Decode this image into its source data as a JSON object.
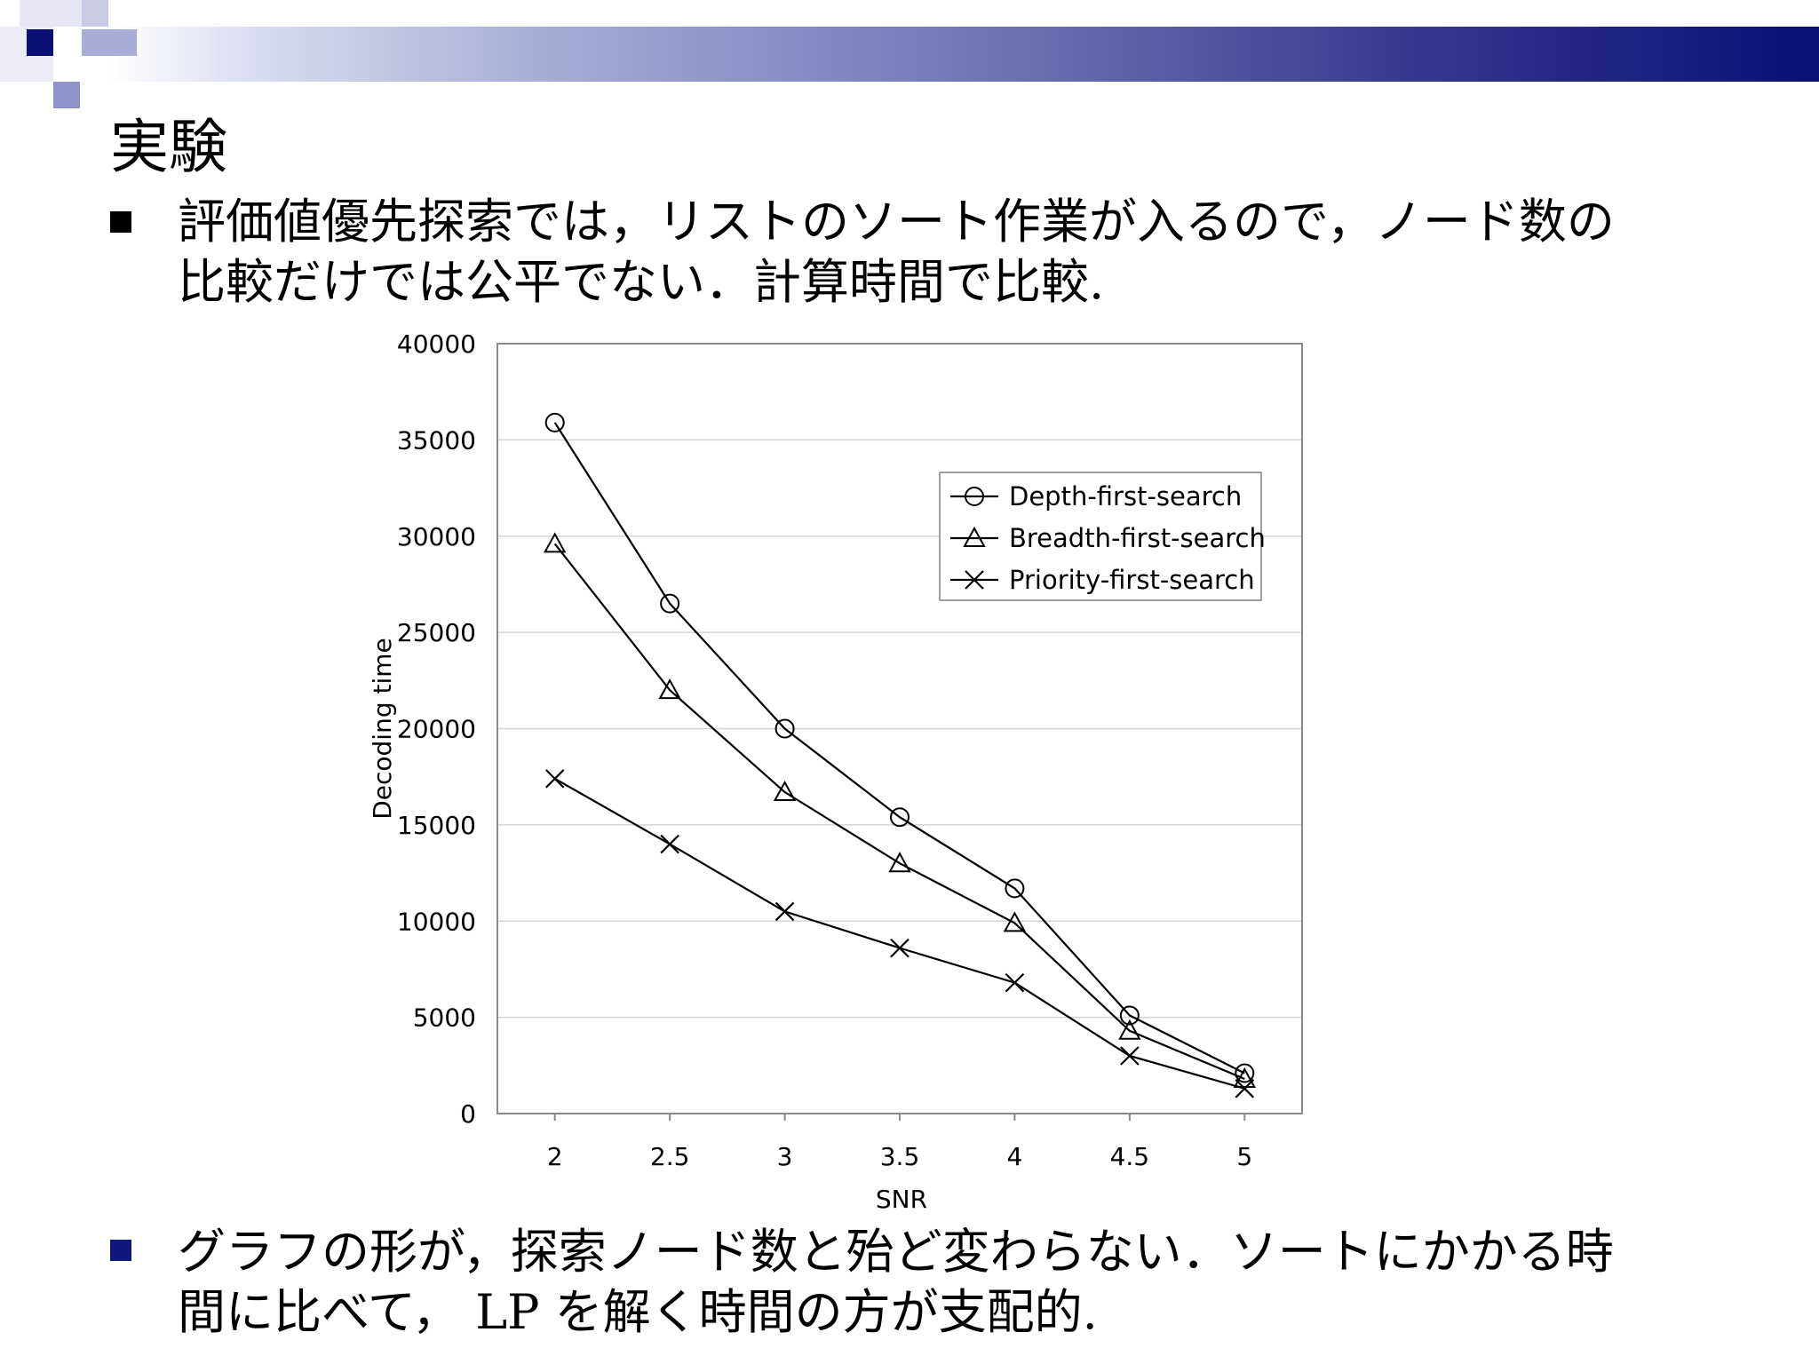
{
  "slide": {
    "title": "実験",
    "bullet1_line1": "評価値優先探索では，リストのソート作業が入るので，ノード数の",
    "bullet1_line2": "比較だけでは公平でない．計算時間で比較.",
    "bullet2_line1": "グラフの形が，探索ノード数と殆ど変わらない．ソートにかかる時",
    "bullet2_line2": "間に比べて，  LP を解く時間の方が支配的."
  },
  "colors": {
    "accent": "#0b0f74",
    "bullet_blue": "#101880"
  },
  "chart_data": {
    "type": "line",
    "x": [
      2,
      2.5,
      3,
      3.5,
      4,
      4.5,
      5
    ],
    "x_tick_labels": [
      "2",
      "2.5",
      "3",
      "3.5",
      "4",
      "4.5",
      "5"
    ],
    "y_ticks": [
      0,
      5000,
      10000,
      15000,
      20000,
      25000,
      30000,
      35000,
      40000
    ],
    "xlabel": "SNR",
    "ylabel": "Decoding time",
    "xlim": [
      1.75,
      5.25
    ],
    "ylim": [
      0,
      40000
    ],
    "grid": "horizontal",
    "legend_position": "top-right",
    "series": [
      {
        "name": "Depth-first-search",
        "marker": "circle",
        "values": [
          35900,
          26500,
          20000,
          15400,
          11700,
          5100,
          2100
        ]
      },
      {
        "name": "Breadth-first-search",
        "marker": "triangle",
        "values": [
          29600,
          22000,
          16700,
          13000,
          9900,
          4300,
          1800
        ]
      },
      {
        "name": "Priority-first-search",
        "marker": "cross",
        "values": [
          17400,
          14000,
          10500,
          8600,
          6800,
          3000,
          1300
        ]
      }
    ]
  }
}
